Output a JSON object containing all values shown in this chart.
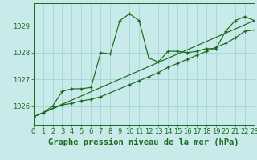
{
  "title": "Graphe pression niveau de la mer (hPa)",
  "bg_color": "#c8eaea",
  "grid_color": "#a8d8d8",
  "line_color": "#1a6b1a",
  "x_min": 0,
  "x_max": 23,
  "y_min": 1025.3,
  "y_max": 1029.85,
  "yticks": [
    1026,
    1027,
    1028,
    1029
  ],
  "xticks": [
    0,
    1,
    2,
    3,
    4,
    5,
    6,
    7,
    8,
    9,
    10,
    11,
    12,
    13,
    14,
    15,
    16,
    17,
    18,
    19,
    20,
    21,
    22,
    23
  ],
  "series1_x": [
    0,
    1,
    2,
    3,
    4,
    5,
    6,
    7,
    8,
    9,
    10,
    11,
    12,
    13,
    14,
    15,
    16,
    17,
    18,
    19,
    20,
    21,
    22,
    23
  ],
  "series1_y": [
    1025.6,
    1025.75,
    1026.0,
    1026.55,
    1026.65,
    1026.65,
    1026.7,
    1028.0,
    1027.95,
    1029.2,
    1029.45,
    1029.2,
    1027.8,
    1027.65,
    1028.05,
    1028.05,
    1028.0,
    1028.05,
    1028.15,
    1028.15,
    1028.8,
    1029.2,
    1029.35,
    1029.2
  ],
  "series2_x": [
    0,
    3,
    4,
    5,
    6,
    7,
    10,
    11,
    12,
    13,
    14,
    15,
    16,
    17,
    18,
    19,
    20,
    21,
    22,
    23
  ],
  "series2_y": [
    1025.6,
    1026.05,
    1026.1,
    1026.2,
    1026.25,
    1026.35,
    1026.8,
    1026.95,
    1027.1,
    1027.25,
    1027.45,
    1027.6,
    1027.75,
    1027.9,
    1028.05,
    1028.2,
    1028.35,
    1028.55,
    1028.8,
    1028.85
  ],
  "series3_x": [
    0,
    23
  ],
  "series3_y": [
    1025.6,
    1029.2
  ],
  "title_fontsize": 7.5,
  "tick_fontsize": 6.0
}
